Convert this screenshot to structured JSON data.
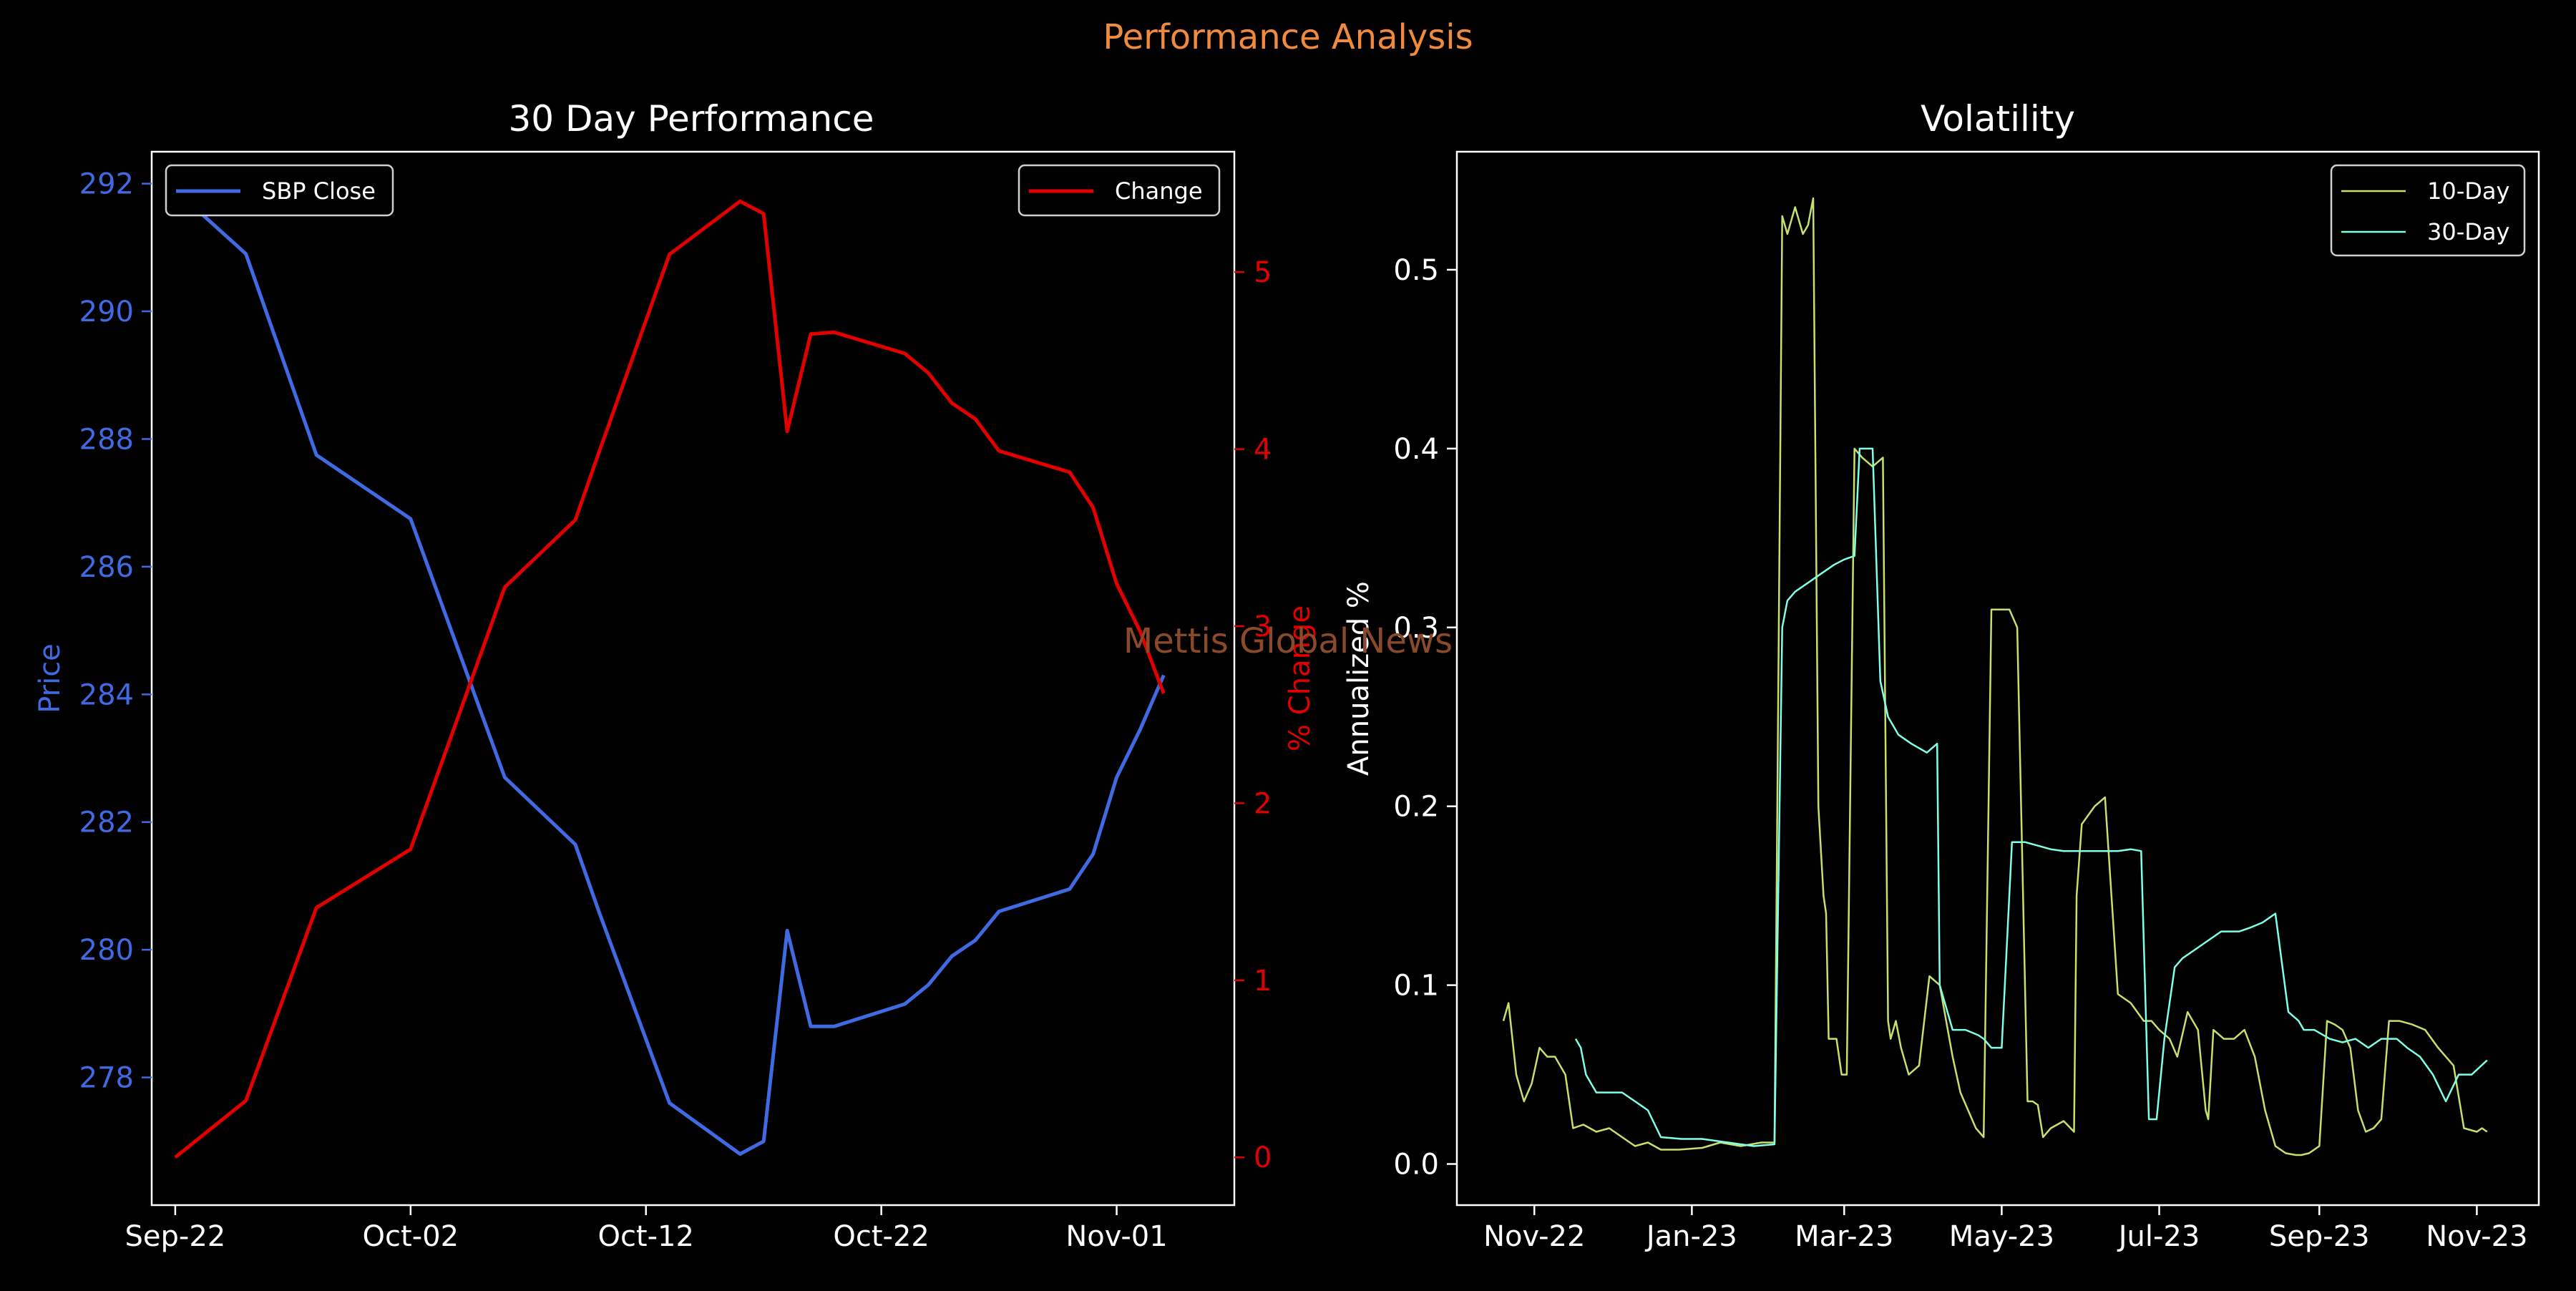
{
  "suptitle": "Performance Analysis",
  "watermark": "Mettis Global News",
  "colors": {
    "background": "#000000",
    "suptitle": "#f08a3c",
    "price": "#4169e1",
    "change": "#e00000",
    "vol10": "#c5e16b",
    "vol30": "#7fffe8",
    "axis": "#ffffff",
    "watermark": "#8a4a2a"
  },
  "chart_data": [
    {
      "type": "line",
      "title": "30 Day Performance",
      "x_type": "date",
      "x_ticks": [
        {
          "date": "2023-09-22",
          "label": "Sep-22"
        },
        {
          "date": "2023-10-02",
          "label": "Oct-02"
        },
        {
          "date": "2023-10-12",
          "label": "Oct-12"
        },
        {
          "date": "2023-10-22",
          "label": "Oct-22"
        },
        {
          "date": "2023-11-01",
          "label": "Nov-01"
        }
      ],
      "xlim": [
        "2023-09-21",
        "2023-11-06"
      ],
      "ylabel": "Price",
      "ylim": [
        276.0,
        292.5
      ],
      "y_ticks": [
        278,
        280,
        282,
        284,
        286,
        288,
        290,
        292
      ],
      "y2label": "% Change",
      "y2lim": [
        -0.27,
        5.68
      ],
      "y2_ticks": [
        0,
        1,
        2,
        3,
        4,
        5
      ],
      "legend_left": "top-left",
      "legend_right": "top-right",
      "series": [
        {
          "name": "SBP Close",
          "axis": "left",
          "x": [
            "2023-09-22",
            "2023-09-25",
            "2023-09-28",
            "2023-10-02",
            "2023-10-06",
            "2023-10-09",
            "2023-10-10",
            "2023-10-13",
            "2023-10-16",
            "2023-10-17",
            "2023-10-18",
            "2023-10-19",
            "2023-10-20",
            "2023-10-23",
            "2023-10-24",
            "2023-10-25",
            "2023-10-26",
            "2023-10-27",
            "2023-10-30",
            "2023-10-31",
            "2023-11-01",
            "2023-11-02",
            "2023-11-03"
          ],
          "y": [
            291.9,
            290.9,
            287.75,
            286.75,
            282.7,
            281.65,
            280.6,
            277.6,
            276.8,
            277.0,
            280.3,
            278.8,
            278.8,
            279.15,
            279.45,
            279.9,
            280.15,
            280.6,
            280.95,
            281.5,
            282.7,
            283.45,
            284.3
          ]
        },
        {
          "name": "Change",
          "axis": "right",
          "x": [
            "2023-09-22",
            "2023-09-25",
            "2023-09-28",
            "2023-10-02",
            "2023-10-06",
            "2023-10-09",
            "2023-10-10",
            "2023-10-13",
            "2023-10-16",
            "2023-10-17",
            "2023-10-18",
            "2023-10-19",
            "2023-10-20",
            "2023-10-23",
            "2023-10-24",
            "2023-10-25",
            "2023-10-26",
            "2023-10-27",
            "2023-10-30",
            "2023-10-31",
            "2023-11-01",
            "2023-11-02",
            "2023-11-03"
          ],
          "y": [
            0.0,
            0.32,
            1.41,
            1.74,
            3.22,
            3.6,
            3.98,
            5.1,
            5.4,
            5.33,
            4.1,
            4.65,
            4.66,
            4.54,
            4.43,
            4.26,
            4.17,
            3.99,
            3.87,
            3.67,
            3.24,
            2.97,
            2.62
          ]
        }
      ]
    },
    {
      "type": "line",
      "title": "Volatility",
      "x_type": "date",
      "x_ticks": [
        {
          "date": "2022-11-01",
          "label": "Nov-22"
        },
        {
          "date": "2023-01-01",
          "label": "Jan-23"
        },
        {
          "date": "2023-03-01",
          "label": "Mar-23"
        },
        {
          "date": "2023-05-01",
          "label": "May-23"
        },
        {
          "date": "2023-07-01",
          "label": "Jul-23"
        },
        {
          "date": "2023-09-01",
          "label": "Sep-23"
        },
        {
          "date": "2023-11-01",
          "label": "Nov-23"
        }
      ],
      "xlim": [
        "2022-10-02",
        "2023-11-25"
      ],
      "ylabel": "Annualized %",
      "ylim": [
        -0.023,
        0.566
      ],
      "y_ticks": [
        0.0,
        0.1,
        0.2,
        0.3,
        0.4,
        0.5
      ],
      "legend": "top-right",
      "series": [
        {
          "name": "10-Day",
          "x": [
            "2022-10-20",
            "2022-10-22",
            "2022-10-25",
            "2022-10-28",
            "2022-10-31",
            "2022-11-03",
            "2022-11-06",
            "2022-11-09",
            "2022-11-13",
            "2022-11-16",
            "2022-11-20",
            "2022-11-25",
            "2022-11-30",
            "2022-12-05",
            "2022-12-10",
            "2022-12-15",
            "2022-12-20",
            "2022-12-27",
            "2023-01-05",
            "2023-01-12",
            "2023-01-20",
            "2023-01-28",
            "2023-02-02",
            "2023-02-05",
            "2023-02-07",
            "2023-02-10",
            "2023-02-13",
            "2023-02-15",
            "2023-02-17",
            "2023-02-19",
            "2023-02-21",
            "2023-02-22",
            "2023-02-23",
            "2023-02-26",
            "2023-02-28",
            "2023-03-02",
            "2023-03-05",
            "2023-03-08",
            "2023-03-12",
            "2023-03-16",
            "2023-03-18",
            "2023-03-19",
            "2023-03-21",
            "2023-03-23",
            "2023-03-26",
            "2023-03-30",
            "2023-04-03",
            "2023-04-07",
            "2023-04-12",
            "2023-04-15",
            "2023-04-18",
            "2023-04-21",
            "2023-04-24",
            "2023-04-27",
            "2023-05-01",
            "2023-05-04",
            "2023-05-07",
            "2023-05-11",
            "2023-05-13",
            "2023-05-15",
            "2023-05-17",
            "2023-05-20",
            "2023-05-25",
            "2023-05-29",
            "2023-05-30",
            "2023-06-01",
            "2023-06-06",
            "2023-06-10",
            "2023-06-15",
            "2023-06-20",
            "2023-06-25",
            "2023-06-28",
            "2023-07-01",
            "2023-07-05",
            "2023-07-08",
            "2023-07-12",
            "2023-07-16",
            "2023-07-19",
            "2023-07-20",
            "2023-07-22",
            "2023-07-26",
            "2023-07-30",
            "2023-08-03",
            "2023-08-07",
            "2023-08-11",
            "2023-08-15",
            "2023-08-19",
            "2023-08-23",
            "2023-08-25",
            "2023-08-28",
            "2023-09-01",
            "2023-09-04",
            "2023-09-07",
            "2023-09-10",
            "2023-09-13",
            "2023-09-16",
            "2023-09-19",
            "2023-09-22",
            "2023-09-25",
            "2023-09-28",
            "2023-10-02",
            "2023-10-07",
            "2023-10-12",
            "2023-10-17",
            "2023-10-20",
            "2023-10-23",
            "2023-10-27",
            "2023-11-01",
            "2023-11-03",
            "2023-11-05"
          ],
          "y": [
            0.08,
            0.09,
            0.05,
            0.035,
            0.045,
            0.065,
            0.06,
            0.06,
            0.05,
            0.02,
            0.022,
            0.018,
            0.02,
            0.015,
            0.01,
            0.012,
            0.008,
            0.008,
            0.009,
            0.012,
            0.01,
            0.012,
            0.012,
            0.53,
            0.52,
            0.535,
            0.52,
            0.525,
            0.54,
            0.2,
            0.15,
            0.14,
            0.07,
            0.07,
            0.05,
            0.05,
            0.4,
            0.395,
            0.39,
            0.395,
            0.08,
            0.07,
            0.08,
            0.065,
            0.05,
            0.055,
            0.105,
            0.1,
            0.06,
            0.04,
            0.03,
            0.02,
            0.015,
            0.31,
            0.31,
            0.31,
            0.3,
            0.035,
            0.035,
            0.033,
            0.015,
            0.02,
            0.024,
            0.018,
            0.15,
            0.19,
            0.2,
            0.205,
            0.095,
            0.09,
            0.08,
            0.08,
            0.075,
            0.07,
            0.06,
            0.085,
            0.075,
            0.03,
            0.025,
            0.075,
            0.07,
            0.07,
            0.075,
            0.06,
            0.03,
            0.01,
            0.006,
            0.005,
            0.005,
            0.006,
            0.01,
            0.08,
            0.078,
            0.075,
            0.065,
            0.03,
            0.018,
            0.02,
            0.025,
            0.08,
            0.08,
            0.078,
            0.075,
            0.065,
            0.06,
            0.055,
            0.02,
            0.018,
            0.02,
            0.018
          ]
        },
        {
          "name": "30-Day",
          "x": [
            "2022-11-17",
            "2022-11-19",
            "2022-11-21",
            "2022-11-25",
            "2022-11-28",
            "2022-12-05",
            "2022-12-10",
            "2022-12-15",
            "2022-12-20",
            "2022-12-28",
            "2023-01-05",
            "2023-01-15",
            "2023-01-25",
            "2023-02-02",
            "2023-02-05",
            "2023-02-07",
            "2023-02-10",
            "2023-02-15",
            "2023-02-20",
            "2023-02-25",
            "2023-03-01",
            "2023-03-05",
            "2023-03-07",
            "2023-03-12",
            "2023-03-15",
            "2023-03-18",
            "2023-03-22",
            "2023-03-27",
            "2023-04-02",
            "2023-04-06",
            "2023-04-07",
            "2023-04-12",
            "2023-04-17",
            "2023-04-22",
            "2023-04-24",
            "2023-04-27",
            "2023-05-01",
            "2023-05-05",
            "2023-05-10",
            "2023-05-15",
            "2023-05-20",
            "2023-05-25",
            "2023-05-30",
            "2023-06-05",
            "2023-06-10",
            "2023-06-15",
            "2023-06-20",
            "2023-06-24",
            "2023-06-27",
            "2023-06-30",
            "2023-07-03",
            "2023-07-07",
            "2023-07-10",
            "2023-07-15",
            "2023-07-20",
            "2023-07-25",
            "2023-08-01",
            "2023-08-05",
            "2023-08-10",
            "2023-08-15",
            "2023-08-20",
            "2023-08-24",
            "2023-08-26",
            "2023-08-30",
            "2023-09-05",
            "2023-09-10",
            "2023-09-15",
            "2023-09-20",
            "2023-09-25",
            "2023-10-01",
            "2023-10-05",
            "2023-10-10",
            "2023-10-15",
            "2023-10-20",
            "2023-10-25",
            "2023-10-30",
            "2023-11-05"
          ],
          "y": [
            0.07,
            0.065,
            0.05,
            0.04,
            0.04,
            0.04,
            0.035,
            0.03,
            0.015,
            0.014,
            0.014,
            0.012,
            0.01,
            0.011,
            0.3,
            0.315,
            0.32,
            0.325,
            0.33,
            0.335,
            0.338,
            0.34,
            0.4,
            0.4,
            0.27,
            0.25,
            0.24,
            0.235,
            0.23,
            0.235,
            0.1,
            0.075,
            0.075,
            0.072,
            0.07,
            0.065,
            0.065,
            0.18,
            0.18,
            0.178,
            0.176,
            0.175,
            0.175,
            0.175,
            0.175,
            0.175,
            0.176,
            0.175,
            0.025,
            0.025,
            0.07,
            0.11,
            0.115,
            0.12,
            0.125,
            0.13,
            0.13,
            0.132,
            0.135,
            0.14,
            0.085,
            0.08,
            0.075,
            0.075,
            0.07,
            0.068,
            0.07,
            0.065,
            0.07,
            0.07,
            0.065,
            0.06,
            0.05,
            0.035,
            0.05,
            0.05,
            0.058
          ]
        }
      ]
    }
  ]
}
